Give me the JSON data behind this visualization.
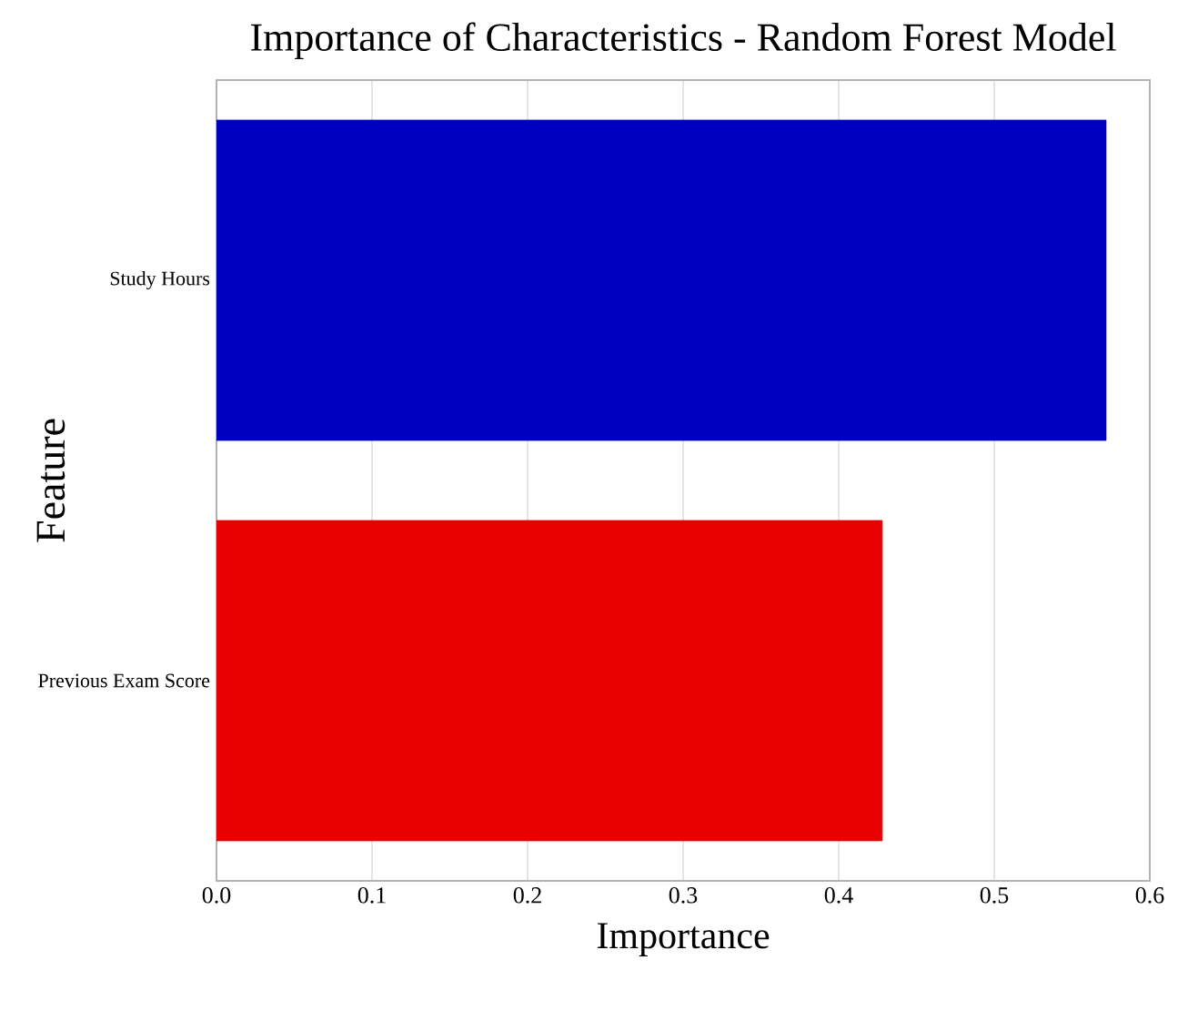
{
  "chart_data": {
    "type": "bar",
    "orientation": "horizontal",
    "title": "Importance of Characteristics - Random Forest Model",
    "xlabel": "Importance",
    "ylabel": "Feature",
    "categories": [
      "Study Hours",
      "Previous Exam Score"
    ],
    "values": [
      0.572,
      0.428
    ],
    "colors": [
      "#0000c0",
      "#e80000"
    ],
    "xlim": [
      0,
      0.6
    ],
    "xticks": [
      {
        "value": 0,
        "label": "0.0"
      },
      0.1,
      0.2,
      0.3,
      0.4,
      0.5,
      0.6
    ],
    "grid": "x"
  }
}
